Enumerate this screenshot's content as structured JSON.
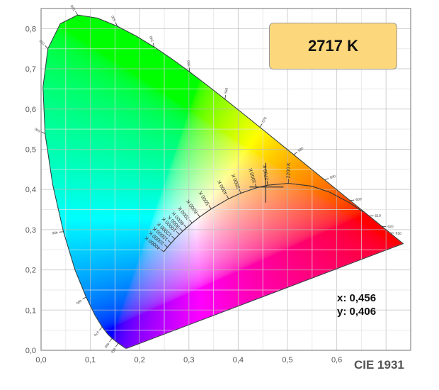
{
  "cct_readout": "2717 K",
  "coord_x": "x: 0,456",
  "coord_y": "y: 0,406",
  "caption": "CIE 1931",
  "colors": {
    "readout_box": "#fdd77b",
    "grid": "#cccccc",
    "curve": "#333333"
  },
  "chart_data": {
    "type": "scatter",
    "title": "",
    "xlim": [
      0,
      0.75
    ],
    "ylim": [
      0,
      0.85
    ],
    "grid": true,
    "x_ticks": [
      "0,0",
      "0,1",
      "0,2",
      "0,3",
      "0,4",
      "0,5",
      "0,6"
    ],
    "y_ticks": [
      "0,0",
      "0,1",
      "0,2",
      "0,3",
      "0,4",
      "0,5",
      "0,6",
      "0,7",
      "0,8"
    ],
    "spectral_locus": [
      {
        "nm": 380,
        "x": 0.1741,
        "y": 0.005
      },
      {
        "nm": 420,
        "x": 0.1714,
        "y": 0.0051
      },
      {
        "nm": 440,
        "x": 0.1644,
        "y": 0.0109
      },
      {
        "nm": 450,
        "x": 0.1566,
        "y": 0.0177,
        "label": "450"
      },
      {
        "nm": 460,
        "x": 0.144,
        "y": 0.0297,
        "label": "460"
      },
      {
        "nm": 465,
        "x": 0.1355,
        "y": 0.0399
      },
      {
        "nm": 470,
        "x": 0.1241,
        "y": 0.0578,
        "label": "470"
      },
      {
        "nm": 475,
        "x": 0.1096,
        "y": 0.0868
      },
      {
        "nm": 480,
        "x": 0.0913,
        "y": 0.1327,
        "label": "480"
      },
      {
        "nm": 485,
        "x": 0.0687,
        "y": 0.2007
      },
      {
        "nm": 490,
        "x": 0.0454,
        "y": 0.295,
        "label": "490"
      },
      {
        "nm": 495,
        "x": 0.0235,
        "y": 0.4127
      },
      {
        "nm": 500,
        "x": 0.0082,
        "y": 0.5384,
        "label": "500"
      },
      {
        "nm": 505,
        "x": 0.0039,
        "y": 0.6548
      },
      {
        "nm": 510,
        "x": 0.0139,
        "y": 0.7502,
        "label": "510"
      },
      {
        "nm": 515,
        "x": 0.0389,
        "y": 0.812
      },
      {
        "nm": 520,
        "x": 0.0743,
        "y": 0.8338,
        "label": "520"
      },
      {
        "nm": 525,
        "x": 0.1142,
        "y": 0.8262
      },
      {
        "nm": 530,
        "x": 0.1547,
        "y": 0.8059,
        "label": "530"
      },
      {
        "nm": 535,
        "x": 0.1929,
        "y": 0.7816
      },
      {
        "nm": 540,
        "x": 0.2296,
        "y": 0.7543,
        "label": "540"
      },
      {
        "nm": 545,
        "x": 0.2658,
        "y": 0.7243
      },
      {
        "nm": 550,
        "x": 0.3016,
        "y": 0.6923,
        "label": "550"
      },
      {
        "nm": 555,
        "x": 0.3373,
        "y": 0.6589
      },
      {
        "nm": 560,
        "x": 0.3731,
        "y": 0.6245,
        "label": "560"
      },
      {
        "nm": 565,
        "x": 0.4087,
        "y": 0.5896
      },
      {
        "nm": 570,
        "x": 0.4441,
        "y": 0.5547,
        "label": "570"
      },
      {
        "nm": 575,
        "x": 0.4788,
        "y": 0.5202
      },
      {
        "nm": 580,
        "x": 0.5125,
        "y": 0.4866,
        "label": "580"
      },
      {
        "nm": 585,
        "x": 0.5448,
        "y": 0.4544
      },
      {
        "nm": 590,
        "x": 0.5752,
        "y": 0.4242,
        "label": "590"
      },
      {
        "nm": 595,
        "x": 0.6029,
        "y": 0.3965
      },
      {
        "nm": 600,
        "x": 0.627,
        "y": 0.3725,
        "label": "600"
      },
      {
        "nm": 605,
        "x": 0.6482,
        "y": 0.3514
      },
      {
        "nm": 610,
        "x": 0.6658,
        "y": 0.334,
        "label": "610"
      },
      {
        "nm": 620,
        "x": 0.6915,
        "y": 0.3083,
        "label": "620"
      },
      {
        "nm": 630,
        "x": 0.7079,
        "y": 0.292,
        "label": "630"
      },
      {
        "nm": 640,
        "x": 0.719,
        "y": 0.2809
      },
      {
        "nm": 650,
        "x": 0.726,
        "y": 0.274
      },
      {
        "nm": 700,
        "x": 0.7347,
        "y": 0.2653
      }
    ],
    "planckian_locus": [
      {
        "x": 0.249,
        "y": 0.245,
        "label": "40000 K"
      },
      {
        "x": 0.2565,
        "y": 0.2564,
        "label": "20000 K"
      },
      {
        "x": 0.2639,
        "y": 0.2665,
        "label": "15000 K"
      },
      {
        "x": 0.2714,
        "y": 0.2768,
        "label": "12000 K"
      },
      {
        "x": 0.2806,
        "y": 0.2883,
        "label": "10000 K"
      },
      {
        "x": 0.2871,
        "y": 0.2959,
        "label": "9000 K"
      },
      {
        "x": 0.2952,
        "y": 0.3048,
        "label": "8000 K"
      },
      {
        "x": 0.3064,
        "y": 0.3166,
        "label": "7000 K"
      },
      {
        "x": 0.3221,
        "y": 0.3318,
        "label": "6000 K"
      },
      {
        "x": 0.3451,
        "y": 0.3516,
        "label": "5000 K"
      },
      {
        "x": 0.3805,
        "y": 0.3768,
        "label": "4000 K"
      },
      {
        "x": 0.4053,
        "y": 0.3907,
        "label": "3500 K"
      },
      {
        "x": 0.4369,
        "y": 0.4041,
        "label": "3000 K"
      },
      {
        "x": 0.4599,
        "y": 0.4106,
        "label": "2700 K"
      },
      {
        "x": 0.5018,
        "y": 0.4153,
        "label": "2200 K"
      },
      {
        "x": 0.5496,
        "y": 0.4081
      },
      {
        "x": 0.5857,
        "y": 0.3931
      },
      {
        "x": 0.6253,
        "y": 0.3674
      },
      {
        "x": 0.6528,
        "y": 0.3444
      }
    ],
    "marker": {
      "x": 0.456,
      "y": 0.406
    }
  }
}
